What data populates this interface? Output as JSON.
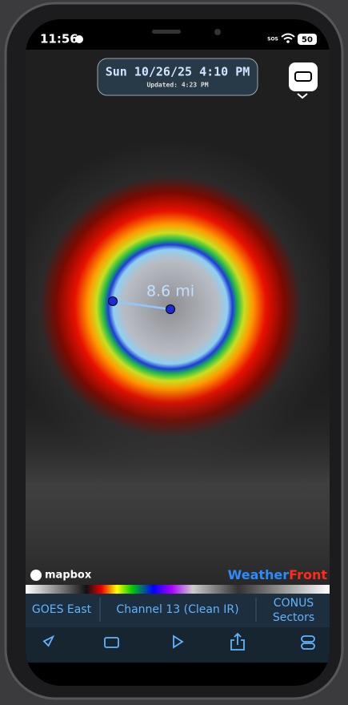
{
  "status_bar": {
    "time": "11:56",
    "sos": "SOS",
    "battery": "50"
  },
  "header": {
    "date": "Sun 10/26/25 4:10 PM",
    "updated": "Updated: 4:23 PM"
  },
  "map": {
    "measurement": "8.6 mi",
    "attribution": "mapbox",
    "brand_1": "Weather",
    "brand_2": "Front"
  },
  "toolbar": {
    "satellite": "GOES East",
    "channel": "Channel 13 (Clean IR)",
    "sector": "CONUS Sectors"
  }
}
